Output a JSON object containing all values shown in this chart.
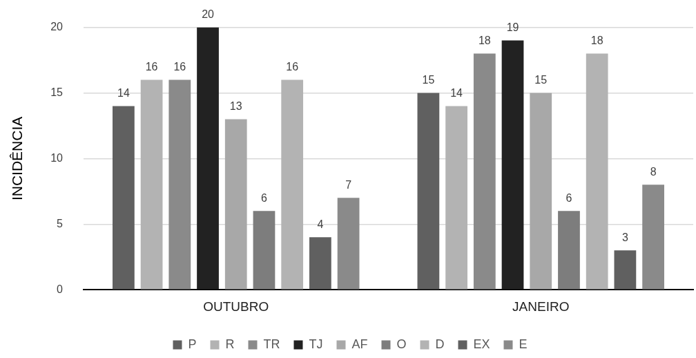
{
  "chart_data": {
    "type": "bar",
    "ylabel": "INCIDÊNCIA",
    "categories": [
      "OUTUBRO",
      "JANEIRO"
    ],
    "series": [
      {
        "name": "P",
        "color": "#606060",
        "values": [
          14,
          15
        ]
      },
      {
        "name": "R",
        "color": "#b3b3b3",
        "values": [
          16,
          14
        ]
      },
      {
        "name": "TR",
        "color": "#8a8a8a",
        "values": [
          16,
          18
        ]
      },
      {
        "name": "TJ",
        "color": "#222222",
        "values": [
          20,
          19
        ]
      },
      {
        "name": "AF",
        "color": "#a8a8a8",
        "values": [
          13,
          15
        ]
      },
      {
        "name": "O",
        "color": "#7d7d7d",
        "values": [
          6,
          6
        ]
      },
      {
        "name": "D",
        "color": "#b3b3b3",
        "values": [
          16,
          18
        ]
      },
      {
        "name": "EX",
        "color": "#606060",
        "values": [
          4,
          3
        ]
      },
      {
        "name": "E",
        "color": "#8a8a8a",
        "values": [
          7,
          8
        ]
      }
    ],
    "ylim": [
      0,
      20
    ],
    "yticks": [
      0,
      5,
      10,
      15,
      20
    ],
    "grid": "y",
    "legend": "bottom",
    "data_labels": true
  }
}
